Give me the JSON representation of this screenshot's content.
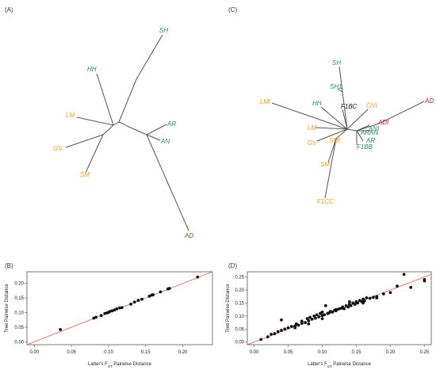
{
  "colors": {
    "green": "#2e8b63",
    "orange": "#f0a020",
    "brown": "#8b5a2b",
    "red": "#c0263a",
    "branch": "#555555",
    "fitline": "#d4664f",
    "point": "#111111"
  },
  "panels": {
    "A": "(A)",
    "B": "(B)",
    "C": "(C)",
    "D": "(D)"
  },
  "chart_data": [
    {
      "type": "tree",
      "panel": "A",
      "tips": [
        {
          "label": "SH",
          "color": "green"
        },
        {
          "label": "HH",
          "color": "green"
        },
        {
          "label": "LM",
          "color": "orange"
        },
        {
          "label": "GV",
          "color": "orange"
        },
        {
          "label": "SM",
          "color": "orange"
        },
        {
          "label": "AR",
          "color": "green"
        },
        {
          "label": "AN",
          "color": "green"
        },
        {
          "label": "AD",
          "color": "brown"
        }
      ]
    },
    {
      "type": "tree",
      "panel": "C",
      "tips": [
        {
          "label": "SH",
          "color": "green"
        },
        {
          "label": "SH1",
          "color": "green"
        },
        {
          "label": "HH",
          "color": "green"
        },
        {
          "label": "F1BC",
          "color": "black"
        },
        {
          "label": "LMI",
          "color": "orange"
        },
        {
          "label": "LM",
          "color": "orange"
        },
        {
          "label": "GV",
          "color": "orange"
        },
        {
          "label": "SMI",
          "color": "orange"
        },
        {
          "label": "SM",
          "color": "orange"
        },
        {
          "label": "F1CC",
          "color": "orange"
        },
        {
          "label": "GVI",
          "color": "orange"
        },
        {
          "label": "ANI",
          "color": "green"
        },
        {
          "label": "ARAN",
          "color": "green"
        },
        {
          "label": "AR",
          "color": "green"
        },
        {
          "label": "F1BB",
          "color": "green"
        },
        {
          "label": "ADI",
          "color": "red"
        },
        {
          "label": "AD",
          "color": "red"
        }
      ]
    },
    {
      "type": "scatter",
      "panel": "B",
      "xlabel": "Latter's F",
      "xlabel_sub": "ST",
      "xlabel_rest": " Pairwise Distance",
      "ylabel": "Tree Pairwise Distance",
      "xlim": [
        -0.01,
        0.24
      ],
      "ylim": [
        -0.01,
        0.24
      ],
      "xticks": [
        "0.00",
        "0.05",
        "0.10",
        "0.15",
        "0.20"
      ],
      "yticks": [
        "0.00",
        "0.05",
        "0.10",
        "0.15",
        "0.20"
      ],
      "fit_line": {
        "x": [
          -0.01,
          0.24
        ],
        "y": [
          -0.01,
          0.24
        ]
      },
      "points": [
        [
          0.035,
          0.042
        ],
        [
          0.08,
          0.081
        ],
        [
          0.083,
          0.084
        ],
        [
          0.09,
          0.09
        ],
        [
          0.095,
          0.097
        ],
        [
          0.098,
          0.099
        ],
        [
          0.1,
          0.101
        ],
        [
          0.102,
          0.104
        ],
        [
          0.105,
          0.106
        ],
        [
          0.108,
          0.109
        ],
        [
          0.111,
          0.113
        ],
        [
          0.115,
          0.116
        ],
        [
          0.118,
          0.117
        ],
        [
          0.13,
          0.129
        ],
        [
          0.135,
          0.136
        ],
        [
          0.14,
          0.142
        ],
        [
          0.145,
          0.146
        ],
        [
          0.155,
          0.156
        ],
        [
          0.158,
          0.16
        ],
        [
          0.16,
          0.161
        ],
        [
          0.17,
          0.171
        ],
        [
          0.18,
          0.181
        ],
        [
          0.182,
          0.183
        ],
        [
          0.22,
          0.222
        ]
      ]
    },
    {
      "type": "scatter",
      "panel": "D",
      "xlabel": "Latter's F",
      "xlabel_sub": "ST",
      "xlabel_rest": " Pairwise Distance",
      "ylabel": "Tree Pairwise Distance",
      "xlim": [
        -0.01,
        0.26
      ],
      "ylim": [
        -0.01,
        0.27
      ],
      "xticks": [
        "0.00",
        "0.05",
        "0.10",
        "0.15",
        "0.20",
        "0.25"
      ],
      "yticks": [
        "0.00",
        "0.05",
        "0.10",
        "0.15",
        "0.20",
        "0.25"
      ],
      "fit_line": {
        "x": [
          -0.01,
          0.26
        ],
        "y": [
          -0.01,
          0.26
        ]
      },
      "points": [
        [
          0.01,
          0.01
        ],
        [
          0.02,
          0.02
        ],
        [
          0.025,
          0.03
        ],
        [
          0.03,
          0.032
        ],
        [
          0.035,
          0.04
        ],
        [
          0.04,
          0.045
        ],
        [
          0.045,
          0.05
        ],
        [
          0.05,
          0.055
        ],
        [
          0.04,
          0.085
        ],
        [
          0.055,
          0.06
        ],
        [
          0.06,
          0.062
        ],
        [
          0.062,
          0.07
        ],
        [
          0.065,
          0.065
        ],
        [
          0.07,
          0.072
        ],
        [
          0.07,
          0.08
        ],
        [
          0.075,
          0.075
        ],
        [
          0.078,
          0.09
        ],
        [
          0.08,
          0.082
        ],
        [
          0.082,
          0.095
        ],
        [
          0.085,
          0.088
        ],
        [
          0.088,
          0.1
        ],
        [
          0.09,
          0.092
        ],
        [
          0.092,
          0.105
        ],
        [
          0.095,
          0.097
        ],
        [
          0.097,
          0.11
        ],
        [
          0.1,
          0.102
        ],
        [
          0.1,
          0.115
        ],
        [
          0.103,
          0.105
        ],
        [
          0.105,
          0.14
        ],
        [
          0.108,
          0.11
        ],
        [
          0.11,
          0.112
        ],
        [
          0.112,
          0.118
        ],
        [
          0.115,
          0.115
        ],
        [
          0.118,
          0.122
        ],
        [
          0.12,
          0.12
        ],
        [
          0.122,
          0.125
        ],
        [
          0.125,
          0.128
        ],
        [
          0.128,
          0.13
        ],
        [
          0.13,
          0.135
        ],
        [
          0.132,
          0.128
        ],
        [
          0.135,
          0.14
        ],
        [
          0.138,
          0.135
        ],
        [
          0.14,
          0.145
        ],
        [
          0.142,
          0.14
        ],
        [
          0.145,
          0.15
        ],
        [
          0.148,
          0.145
        ],
        [
          0.15,
          0.155
        ],
        [
          0.152,
          0.15
        ],
        [
          0.155,
          0.16
        ],
        [
          0.158,
          0.155
        ],
        [
          0.16,
          0.165
        ],
        [
          0.162,
          0.158
        ],
        [
          0.165,
          0.17
        ],
        [
          0.17,
          0.168
        ],
        [
          0.175,
          0.172
        ],
        [
          0.18,
          0.175
        ],
        [
          0.19,
          0.185
        ],
        [
          0.2,
          0.19
        ],
        [
          0.21,
          0.215
        ],
        [
          0.22,
          0.26
        ],
        [
          0.23,
          0.21
        ],
        [
          0.25,
          0.24
        ],
        [
          0.25,
          0.235
        ],
        [
          0.08,
          0.07
        ],
        [
          0.06,
          0.055
        ],
        [
          0.12,
          0.125
        ],
        [
          0.14,
          0.155
        ],
        [
          0.1,
          0.09
        ],
        [
          0.16,
          0.15
        ],
        [
          0.18,
          0.17
        ]
      ]
    }
  ]
}
